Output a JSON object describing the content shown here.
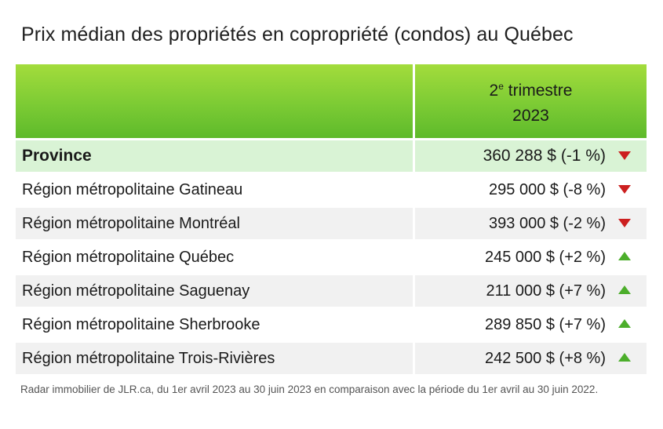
{
  "chart_data": {
    "type": "table",
    "title": "Prix médian des propriétés en copropriété (condos) au Québec",
    "column_header": {
      "ordinal": "2",
      "suffix": "e",
      "period": "trimestre",
      "year": "2023"
    },
    "rows": [
      {
        "region": "Province",
        "value": "360 288 $ (-1 %)",
        "trend": "down"
      },
      {
        "region": "Région métropolitaine Gatineau",
        "value": "295 000 $ (-8 %)",
        "trend": "down"
      },
      {
        "region": "Région métropolitaine Montréal",
        "value": "393 000 $ (-2 %)",
        "trend": "down"
      },
      {
        "region": "Région métropolitaine Québec",
        "value": "245 000 $ (+2 %)",
        "trend": "up"
      },
      {
        "region": "Région métropolitaine Saguenay",
        "value": "211 000 $ (+7 %)",
        "trend": "up"
      },
      {
        "region": "Région métropolitaine Sherbrooke",
        "value": "289 850 $ (+7 %)",
        "trend": "up"
      },
      {
        "region": "Région métropolitaine Trois-Rivières",
        "value": "242 500 $ (+8 %)",
        "trend": "up"
      }
    ],
    "source": "Radar immobilier de JLR.ca, du 1er avril 2023 au 30 juin 2023 en comparaison avec la période du 1er avril au 30 juin 2022."
  },
  "colors": {
    "header_green": "#7ccb34",
    "province_row": "#d9f3d5",
    "alt_row": "#f1f1f1",
    "down_arrow": "#cc1f1f",
    "up_arrow": "#4cae2b"
  }
}
